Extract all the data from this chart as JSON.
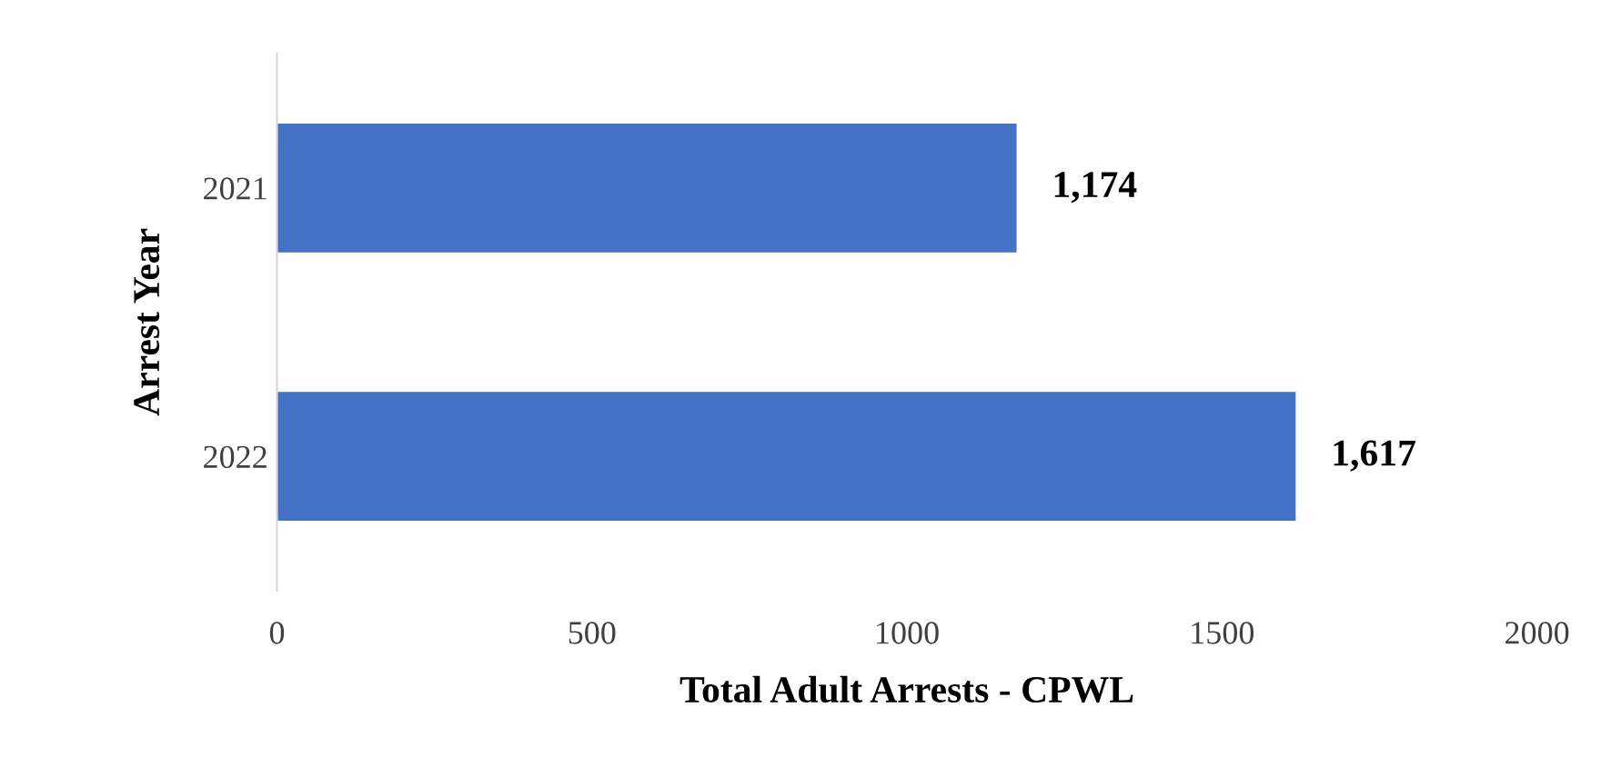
{
  "chart_data": {
    "type": "bar",
    "orientation": "horizontal",
    "categories": [
      "2021",
      "2022"
    ],
    "values": [
      1174,
      1617
    ],
    "value_labels": [
      "1,174",
      "1,617"
    ],
    "color": "#4472c4",
    "xlabel": "Total Adult Arrests - CPWL",
    "ylabel": "Arrest Year",
    "xlim": [
      0,
      2000
    ],
    "xticks": [
      0,
      500,
      1000,
      1500,
      2000
    ],
    "grid": false,
    "legend": false
  }
}
